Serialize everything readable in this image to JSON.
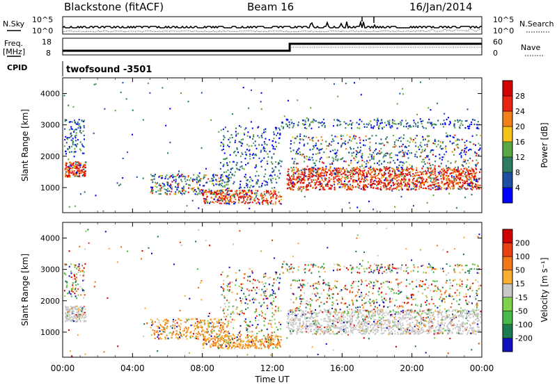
{
  "header": {
    "title": "Blackstone (fitACF)",
    "beam": "Beam 16",
    "date": "16/Jan/2014"
  },
  "top_panels": {
    "nsky_label": "N.Sky",
    "nsearch_label": "N.Search",
    "noise_ticks": [
      "10^5",
      "10^0"
    ],
    "freq_label_1": "Freq.",
    "freq_label_2": "[MHz]",
    "freq_ticks": [
      "18",
      "8"
    ],
    "nave_label": "Nave",
    "nave_ticks": [
      "60",
      "0"
    ],
    "cpid_label": "CPID",
    "cpid_value": "twofsound -3501"
  },
  "chart_data": [
    {
      "type": "heatmap",
      "name": "power",
      "ylabel": "Slant Range [km]",
      "yticks": [
        1000,
        2000,
        3000,
        4000
      ],
      "ylim": [
        200,
        4500
      ],
      "colorbar_label": "Power [dB]",
      "colorbar_ticks": [
        "28",
        "24",
        "20",
        "16",
        "12",
        "8",
        "4"
      ],
      "colors": [
        "#0000ff",
        "#1f4fa0",
        "#2e7d62",
        "#5aa843",
        "#f7c21a",
        "#f08018",
        "#ea2412",
        "#d40000"
      ],
      "features": [
        {
          "t": [
            0.1,
            1.2
          ],
          "range": [
            1350,
            1850
          ],
          "level": 0.8
        },
        {
          "t": [
            5.0,
            9.5
          ],
          "range": [
            800,
            1450
          ],
          "level": 0.45
        },
        {
          "t": [
            8.0,
            12.5
          ],
          "range": [
            500,
            900
          ],
          "level": 0.6
        },
        {
          "t": [
            12.8,
            23.9
          ],
          "range": [
            950,
            1650
          ],
          "level": 0.85
        }
      ]
    },
    {
      "type": "heatmap",
      "name": "velocity",
      "ylabel": "Slant Range [km]",
      "yticks": [
        1000,
        2000,
        3000,
        4000
      ],
      "ylim": [
        200,
        4500
      ],
      "colorbar_label": "Velocity [m s⁻¹]",
      "colorbar_ticks": [
        "200",
        "100",
        "50",
        "15",
        "-15",
        "-50",
        "-100",
        "-200"
      ],
      "colors": [
        "#1010c0",
        "#1e7a50",
        "#48b848",
        "#7fd04a",
        "#c8c8c8",
        "#f8b030",
        "#f07818",
        "#e84010",
        "#d00000"
      ]
    }
  ],
  "xaxis": {
    "ticks": [
      "00:00",
      "04:00",
      "08:00",
      "12:00",
      "16:00",
      "20:00",
      "00:00"
    ],
    "label": "Time UT"
  }
}
